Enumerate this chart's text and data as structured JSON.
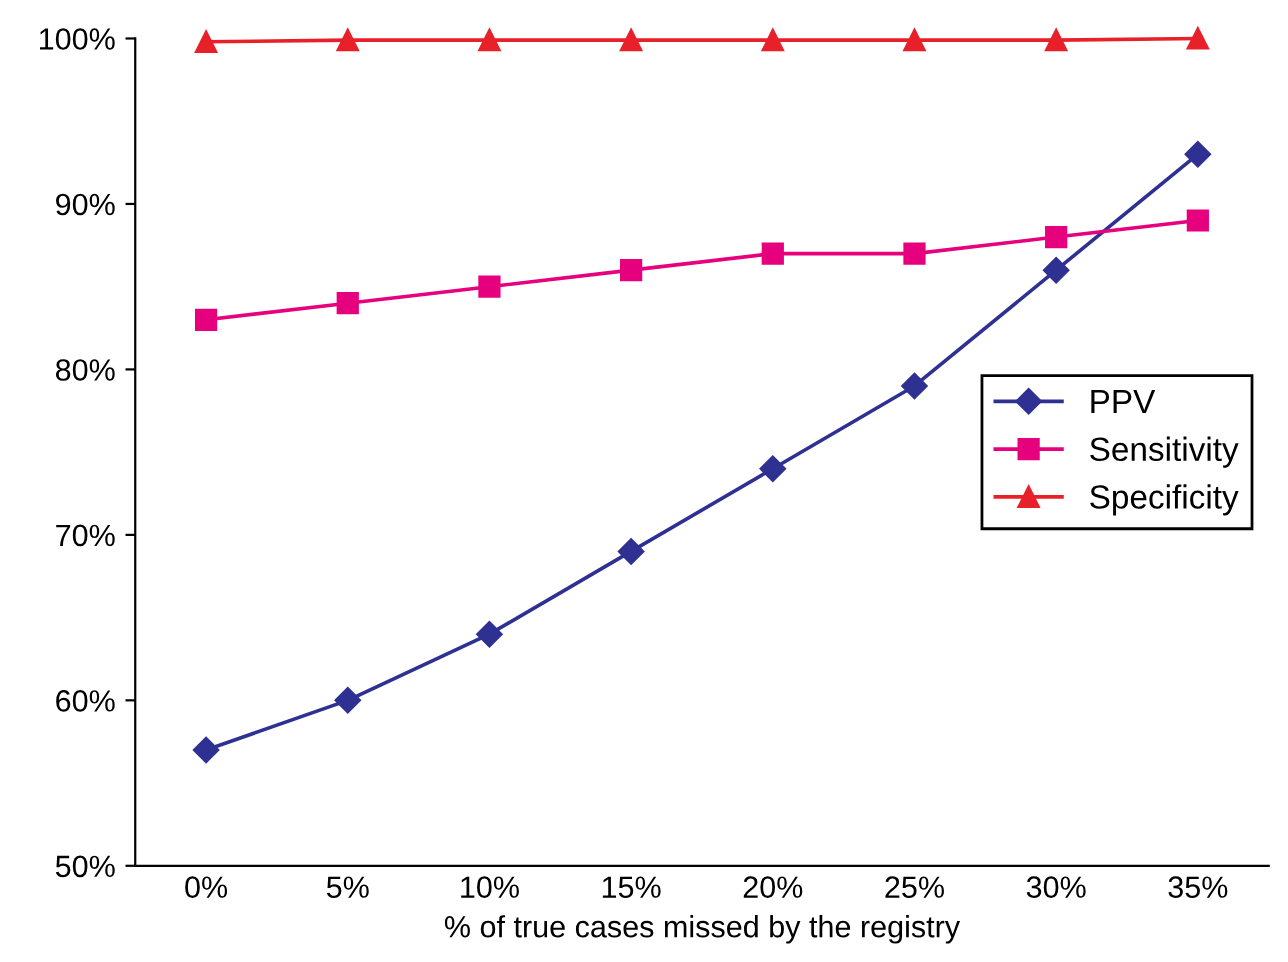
{
  "chart_data": {
    "type": "line",
    "xlabel": "% of true cases missed by the registry",
    "categories": [
      "0%",
      "5%",
      "10%",
      "15%",
      "20%",
      "25%",
      "30%",
      "35%"
    ],
    "series": [
      {
        "name": "PPV",
        "color": "#2e3192",
        "marker": "diamond",
        "values": [
          57,
          60,
          64,
          69,
          74,
          79,
          86,
          93
        ]
      },
      {
        "name": "Sensitivity",
        "color": "#e6007e",
        "marker": "square",
        "values": [
          83,
          84,
          85,
          86,
          87,
          87,
          88,
          89
        ]
      },
      {
        "name": "Specificity",
        "color": "#e8202a",
        "marker": "triangle",
        "values": [
          99.8,
          99.9,
          99.9,
          99.9,
          99.9,
          99.9,
          99.9,
          100
        ]
      }
    ],
    "ylim": [
      50,
      100
    ],
    "yticks": [
      {
        "value": 50,
        "label": "50%"
      },
      {
        "value": 60,
        "label": "60%"
      },
      {
        "value": 70,
        "label": "70%"
      },
      {
        "value": 80,
        "label": "80%"
      },
      {
        "value": 90,
        "label": "90%"
      },
      {
        "value": 100,
        "label": "100%"
      }
    ],
    "grid": false,
    "legend": "right",
    "line_style": "solid"
  }
}
